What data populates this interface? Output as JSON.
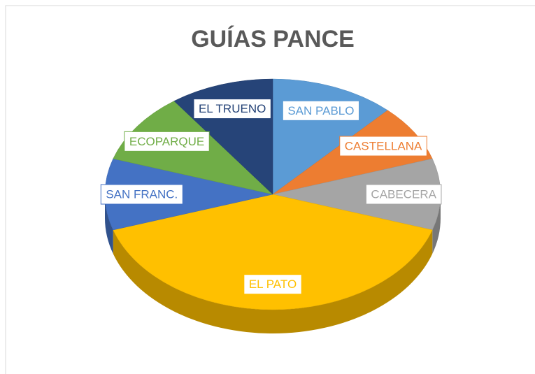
{
  "chart_data": {
    "type": "pie",
    "title": "GUÍAS PANCE",
    "categories": [
      "SAN PABLO",
      "CASTELLANA",
      "CABECERA",
      "EL PATO",
      "SAN FRANC.",
      "ECOPARQUE",
      "EL TRUENO"
    ],
    "values": [
      12,
      8,
      10,
      40,
      10,
      10,
      10
    ],
    "colors": [
      "#5b9bd5",
      "#ed7d31",
      "#a5a5a5",
      "#ffc000",
      "#4472c4",
      "#70ad47",
      "#264478"
    ]
  }
}
